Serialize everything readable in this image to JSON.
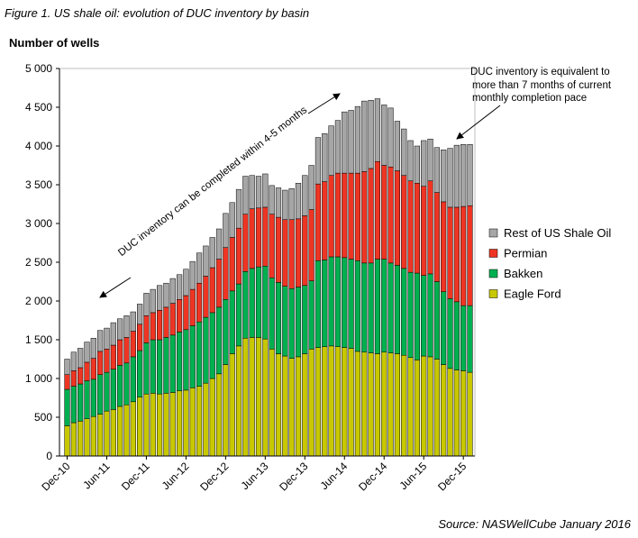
{
  "figure": {
    "title": "Figure 1. US shale oil: evolution of DUC inventory by basin",
    "source": "Source: NASWellCube January 2016"
  },
  "chart_data": {
    "type": "bar",
    "stacked": true,
    "title": "Figure 1. US shale oil: evolution of DUC inventory by basin",
    "ylabel": "Number of wells",
    "xlabel": "",
    "ylim": [
      0,
      5000
    ],
    "y_ticks": [
      0,
      500,
      1000,
      1500,
      2000,
      2500,
      3000,
      3500,
      4000,
      4500,
      5000
    ],
    "y_tick_labels": [
      "0",
      "500",
      "1 000",
      "1 500",
      "2 000",
      "2 500",
      "3 000",
      "3 500",
      "4 000",
      "4 500",
      "5 000"
    ],
    "x_tick_labels": [
      {
        "index": 0,
        "label": "Dec-10"
      },
      {
        "index": 6,
        "label": "Jun-11"
      },
      {
        "index": 12,
        "label": "Dec-11"
      },
      {
        "index": 18,
        "label": "Jun-12"
      },
      {
        "index": 24,
        "label": "Dec-12"
      },
      {
        "index": 30,
        "label": "Jun-13"
      },
      {
        "index": 36,
        "label": "Dec-13"
      },
      {
        "index": 42,
        "label": "Jun-14"
      },
      {
        "index": 48,
        "label": "Dec-14"
      },
      {
        "index": 54,
        "label": "Jun-15"
      },
      {
        "index": 60,
        "label": "Dec-15"
      }
    ],
    "series": [
      {
        "name": "Eagle Ford",
        "color": "#c8c800",
        "values": [
          390,
          430,
          450,
          480,
          510,
          540,
          580,
          600,
          640,
          660,
          700,
          760,
          800,
          810,
          800,
          810,
          820,
          840,
          850,
          880,
          900,
          940,
          1000,
          1060,
          1180,
          1320,
          1420,
          1520,
          1530,
          1530,
          1510,
          1380,
          1320,
          1290,
          1260,
          1280,
          1320,
          1380,
          1400,
          1410,
          1420,
          1410,
          1400,
          1390,
          1350,
          1340,
          1330,
          1320,
          1340,
          1330,
          1320,
          1300,
          1270,
          1240,
          1290,
          1280,
          1250,
          1180,
          1130,
          1110,
          1100,
          1080
        ]
      },
      {
        "name": "Bakken",
        "color": "#00b050",
        "values": [
          470,
          470,
          480,
          490,
          480,
          510,
          500,
          520,
          530,
          540,
          580,
          600,
          660,
          690,
          700,
          720,
          740,
          760,
          780,
          800,
          830,
          850,
          850,
          860,
          840,
          810,
          800,
          860,
          890,
          910,
          940,
          920,
          920,
          900,
          900,
          900,
          880,
          880,
          1120,
          1120,
          1150,
          1160,
          1160,
          1150,
          1170,
          1150,
          1160,
          1220,
          1200,
          1160,
          1140,
          1120,
          1100,
          1120,
          1040,
          1070,
          1000,
          940,
          900,
          880,
          840,
          860
        ]
      },
      {
        "name": "Permian",
        "color": "#ee3524",
        "values": [
          190,
          200,
          210,
          240,
          270,
          300,
          300,
          310,
          330,
          330,
          330,
          340,
          350,
          350,
          380,
          390,
          410,
          420,
          440,
          470,
          500,
          530,
          580,
          620,
          670,
          690,
          720,
          740,
          770,
          760,
          760,
          820,
          840,
          860,
          890,
          880,
          900,
          920,
          990,
          1010,
          1050,
          1080,
          1090,
          1110,
          1130,
          1180,
          1220,
          1260,
          1210,
          1240,
          1220,
          1200,
          1180,
          1160,
          1150,
          1200,
          1150,
          1160,
          1180,
          1220,
          1280,
          1290
        ]
      },
      {
        "name": "Rest of US Shale Oil",
        "color": "#a6a6a6",
        "values": [
          200,
          240,
          250,
          260,
          260,
          270,
          270,
          290,
          270,
          280,
          250,
          260,
          290,
          300,
          320,
          310,
          320,
          320,
          340,
          360,
          390,
          390,
          390,
          390,
          440,
          450,
          500,
          490,
          430,
          410,
          430,
          370,
          380,
          380,
          400,
          460,
          520,
          570,
          600,
          620,
          640,
          680,
          790,
          810,
          860,
          910,
          880,
          810,
          780,
          760,
          640,
          600,
          520,
          480,
          590,
          540,
          580,
          670,
          760,
          800,
          800,
          790
        ]
      }
    ],
    "legend": {
      "placement": "right",
      "order": [
        "Rest of US Shale Oil",
        "Permian",
        "Bakken",
        "Eagle Ford"
      ]
    },
    "annotations": {
      "diagonal": "DUC inventory can be completed within 4-5 months",
      "callout_lines": [
        "DUC inventory is equivalent to",
        "more than 7 months of current",
        "monthly completion pace"
      ]
    }
  }
}
